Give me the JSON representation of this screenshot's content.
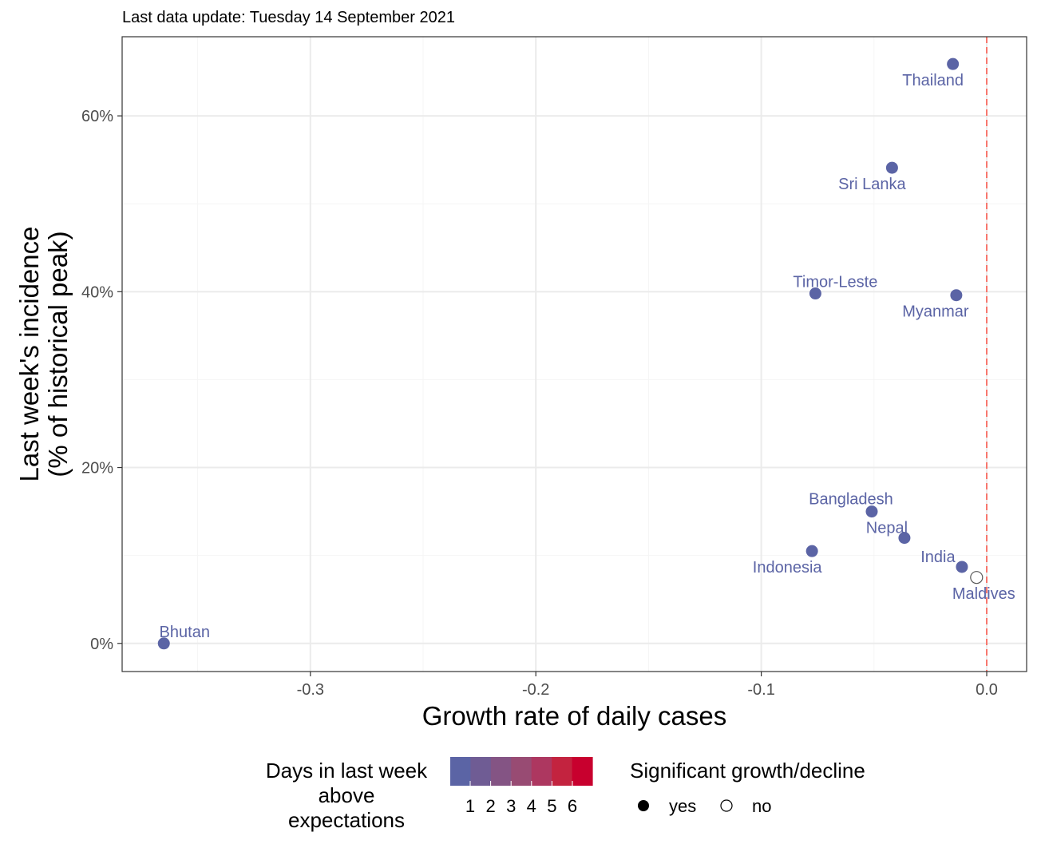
{
  "subtitle": "Last data update: Tuesday 14 September 2021",
  "chart_data": {
    "type": "scatter",
    "xlabel": "Growth rate of daily cases",
    "ylabel_line1": "Last week's incidence",
    "ylabel_line2": "(% of historical peak)",
    "xlim": [
      -0.3835,
      0.0177
    ],
    "ylim": [
      -3.2,
      69.0
    ],
    "x_ticks": [
      -0.3,
      -0.2,
      -0.1,
      0.0
    ],
    "x_tick_labels": [
      "-0.3",
      "-0.2",
      "-0.1",
      "0.0"
    ],
    "y_ticks": [
      0,
      20,
      40,
      60
    ],
    "y_tick_labels": [
      "0%",
      "20%",
      "40%",
      "60%"
    ],
    "reference_line_x": 0.0,
    "grid": true,
    "points": [
      {
        "label": "Thailand",
        "x": -0.015,
        "y": 65.9,
        "days_above": 1,
        "significant": "yes"
      },
      {
        "label": "Sri Lanka",
        "x": -0.042,
        "y": 54.1,
        "days_above": 1,
        "significant": "yes"
      },
      {
        "label": "Timor-Leste",
        "x": -0.076,
        "y": 39.8,
        "days_above": 1,
        "significant": "yes"
      },
      {
        "label": "Myanmar",
        "x": -0.0135,
        "y": 39.6,
        "days_above": 1,
        "significant": "yes"
      },
      {
        "label": "Bangladesh",
        "x": -0.051,
        "y": 15.0,
        "days_above": 1,
        "significant": "yes"
      },
      {
        "label": "Nepal",
        "x": -0.0365,
        "y": 12.0,
        "days_above": 1,
        "significant": "yes"
      },
      {
        "label": "Indonesia",
        "x": -0.0775,
        "y": 10.5,
        "days_above": 1,
        "significant": "yes"
      },
      {
        "label": "India",
        "x": -0.011,
        "y": 8.7,
        "days_above": 1,
        "significant": "yes"
      },
      {
        "label": "Maldives",
        "x": -0.0045,
        "y": 7.5,
        "days_above": 1,
        "significant": "no"
      },
      {
        "label": "Bhutan",
        "x": -0.365,
        "y": 0.0,
        "days_above": 1,
        "significant": "yes"
      }
    ],
    "legend": {
      "color_title_lines": [
        "Days in last week",
        "above",
        "expectations"
      ],
      "color_tick_labels": [
        "1",
        "2",
        "3",
        "4",
        "5",
        "6"
      ],
      "color_stops": [
        "#5b64a5",
        "#6f5c94",
        "#845484",
        "#984b73",
        "#ad3760",
        "#c3233f",
        "#c8002e"
      ],
      "shape_title": "Significant growth/decline",
      "shape_items": [
        "yes",
        "no"
      ],
      "placement": "bottom"
    }
  },
  "colors": {
    "point": "#5b64a5",
    "reference_line": "#f8766d",
    "grid_major": "#ebebeb",
    "grid_minor": "#f5f5f5",
    "panel_border": "#333333"
  }
}
